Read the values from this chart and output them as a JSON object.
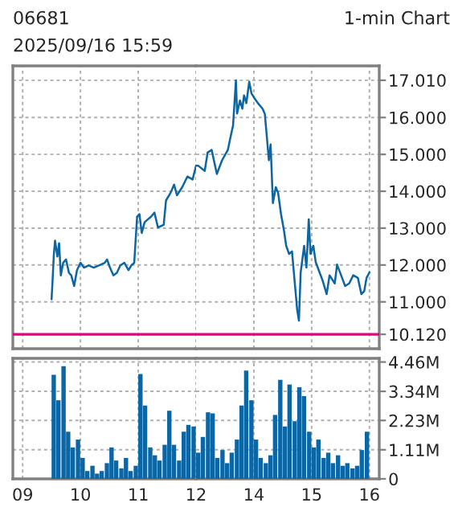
{
  "chart_data": [
    {
      "type": "line",
      "title": "06681",
      "subtitle": "2025/09/16 15:59",
      "annotations": [
        "1-min Chart"
      ],
      "xlim": [
        8.83,
        12
      ],
      "xticks": [
        9,
        10,
        11,
        12
      ],
      "ylim": [
        9.73,
        17.4
      ],
      "yticks": [
        10.12,
        11,
        12,
        13,
        14,
        15,
        16,
        17.01
      ],
      "tick_labels": false,
      "grid": true,
      "line_style": "solid",
      "ref_lines": [
        {
          "axis": "y",
          "value": 10.12,
          "color": "#e6007e"
        }
      ],
      "series": [
        {
          "color": "#0b66a3",
          "x": [
            9.5,
            9.51,
            9.54,
            9.56,
            9.6,
            9.63,
            9.66,
            9.7,
            9.75,
            9.8,
            9.84,
            9.89,
            9.94,
            10.0,
            10.06,
            10.14,
            10.23,
            10.32,
            10.42,
            10.46,
            10.51,
            10.57,
            10.63,
            10.69,
            10.76,
            10.83,
            10.88,
            10.93,
            10.98,
            11.02,
            11.06,
            11.11,
            11.16,
            11.22,
            11.28,
            11.34,
            11.44,
            11.48,
            11.56,
            11.62,
            11.67,
            11.76,
            11.85,
            11.94,
            12.0
          ],
          "values": [
            11.07,
            11.36,
            12.3,
            12.66,
            12.23,
            12.59,
            11.72,
            12.06,
            12.15,
            11.79,
            11.72,
            11.43,
            11.86,
            12.06,
            11.93,
            11.99,
            11.93,
            11.99,
            12.06,
            12.15,
            11.93,
            11.72,
            11.79,
            11.99,
            12.06,
            11.86,
            11.99,
            12.06,
            13.31,
            13.38,
            12.87,
            13.16,
            13.23,
            13.31,
            13.42,
            13.02,
            13.09,
            13.75,
            13.96,
            14.18,
            13.89,
            14.11,
            14.4,
            14.32,
            14.69
          ]
        }
      ]
    },
    {
      "type": "line",
      "xlim": [
        13,
        16.17
      ],
      "xticks": [
        14,
        15,
        16
      ],
      "ylim": [
        9.73,
        17.4
      ],
      "yticks": [
        {
          "value": 10.12,
          "label": "10.120"
        },
        {
          "value": 11,
          "label": "11.000"
        },
        {
          "value": 12,
          "label": "12.000"
        },
        {
          "value": 13,
          "label": "13.000"
        },
        {
          "value": 14,
          "label": "14.000"
        },
        {
          "value": 15,
          "label": "15.000"
        },
        {
          "value": 16,
          "label": "16.000"
        },
        {
          "value": 17.01,
          "label": "17.010"
        }
      ],
      "tick_labels": "y",
      "grid": true,
      "line_style": "solid",
      "ref_lines": [
        {
          "axis": "y",
          "value": 10.12,
          "color": "#e6007e"
        }
      ],
      "series": [
        {
          "color": "#0b66a3",
          "x": [
            13.0,
            13.04,
            13.15,
            13.2,
            13.27,
            13.36,
            13.45,
            13.55,
            13.59,
            13.64,
            13.69,
            13.71,
            13.76,
            13.8,
            13.83,
            13.87,
            13.92,
            13.96,
            14.02,
            14.07,
            14.15,
            14.19,
            14.22,
            14.26,
            14.29,
            14.33,
            14.38,
            14.42,
            14.47,
            14.52,
            14.56,
            14.61,
            14.66,
            14.7,
            14.75,
            14.78,
            14.81,
            14.87,
            14.91,
            14.95,
            14.98,
            15.03,
            15.07,
            15.12,
            15.19,
            15.26,
            15.31,
            15.4,
            15.44,
            15.51,
            15.58,
            15.65,
            15.72,
            15.8,
            15.86,
            15.91,
            15.95,
            16.0
          ],
          "values": [
            14.69,
            14.69,
            14.55,
            15.05,
            15.12,
            14.47,
            14.84,
            15.12,
            15.42,
            15.78,
            17.01,
            16.11,
            16.46,
            16.24,
            16.6,
            16.39,
            16.97,
            16.65,
            16.5,
            16.39,
            16.24,
            16.1,
            15.56,
            14.84,
            15.27,
            13.68,
            14.11,
            13.96,
            13.38,
            12.95,
            12.52,
            12.3,
            12.37,
            11.66,
            10.78,
            10.49,
            11.79,
            12.52,
            11.93,
            13.24,
            12.3,
            12.52,
            12.08,
            11.87,
            11.58,
            11.21,
            11.72,
            11.5,
            12.01,
            11.72,
            11.43,
            11.5,
            11.72,
            11.65,
            11.21,
            11.29,
            11.65,
            11.8
          ]
        }
      ]
    },
    {
      "type": "bar",
      "xlim": [
        8.83,
        12
      ],
      "xticks": [
        {
          "value": 9,
          "label": "09"
        },
        {
          "value": 10,
          "label": "10"
        },
        {
          "value": 11,
          "label": "11"
        },
        {
          "value": 12,
          "label": "12"
        }
      ],
      "ylim": [
        0,
        4.6
      ],
      "yticks": [
        0,
        1.11,
        2.23,
        3.34,
        4.46
      ],
      "tick_labels": "x",
      "grid": true,
      "series": [
        {
          "color": "#0b66a3",
          "x": [
            9.5,
            9.58,
            9.67,
            9.75,
            9.83,
            9.92,
            10.0,
            10.08,
            10.17,
            10.25,
            10.33,
            10.42,
            10.5,
            10.58,
            10.67,
            10.75,
            10.83,
            10.92,
            11.0,
            11.08,
            11.17,
            11.25,
            11.33,
            11.42,
            11.5,
            11.58,
            11.67,
            11.75,
            11.83,
            11.92
          ],
          "values": [
            3.97,
            3.0,
            4.3,
            1.8,
            1.2,
            1.5,
            0.8,
            0.3,
            0.5,
            0.2,
            0.3,
            0.6,
            1.2,
            0.7,
            0.4,
            0.8,
            0.3,
            0.5,
            4.0,
            2.8,
            1.2,
            0.9,
            0.7,
            1.3,
            2.6,
            1.3,
            0.7,
            1.8,
            2.06,
            2.0
          ]
        }
      ]
    },
    {
      "type": "bar",
      "xlim": [
        13,
        16.17
      ],
      "xticks": [
        {
          "value": 14,
          "label": "14"
        },
        {
          "value": 15,
          "label": "15"
        },
        {
          "value": 16,
          "label": "16"
        }
      ],
      "ylim": [
        0,
        4.6
      ],
      "yticks": [
        0,
        {
          "value": 1.11,
          "label": "1.11M"
        },
        {
          "value": 2.23,
          "label": "2.23M"
        },
        {
          "value": 3.34,
          "label": "3.34M"
        },
        {
          "value": 4.46,
          "label": "4.46M"
        }
      ],
      "grid": true,
      "series": [
        {
          "color": "#0b66a3",
          "x": [
            13.0,
            13.08,
            13.17,
            13.25,
            13.33,
            13.42,
            13.5,
            13.58,
            13.67,
            13.75,
            13.83,
            13.92,
            14.0,
            14.08,
            14.17,
            14.25,
            14.33,
            14.42,
            14.5,
            14.58,
            14.67,
            14.75,
            14.83,
            14.92,
            15.0,
            15.08,
            15.17,
            15.25,
            15.33,
            15.42,
            15.5,
            15.58,
            15.67,
            15.75,
            15.83,
            15.92
          ],
          "values": [
            1.0,
            1.6,
            2.54,
            2.5,
            0.8,
            1.1,
            0.6,
            1.0,
            1.5,
            2.8,
            4.13,
            3.0,
            1.5,
            0.8,
            0.6,
            0.9,
            2.44,
            3.78,
            2.0,
            3.6,
            2.2,
            3.5,
            3.16,
            1.8,
            1.2,
            1.5,
            0.8,
            1.0,
            0.6,
            0.9,
            0.5,
            0.6,
            0.4,
            0.5,
            1.1,
            1.8
          ]
        }
      ]
    }
  ]
}
